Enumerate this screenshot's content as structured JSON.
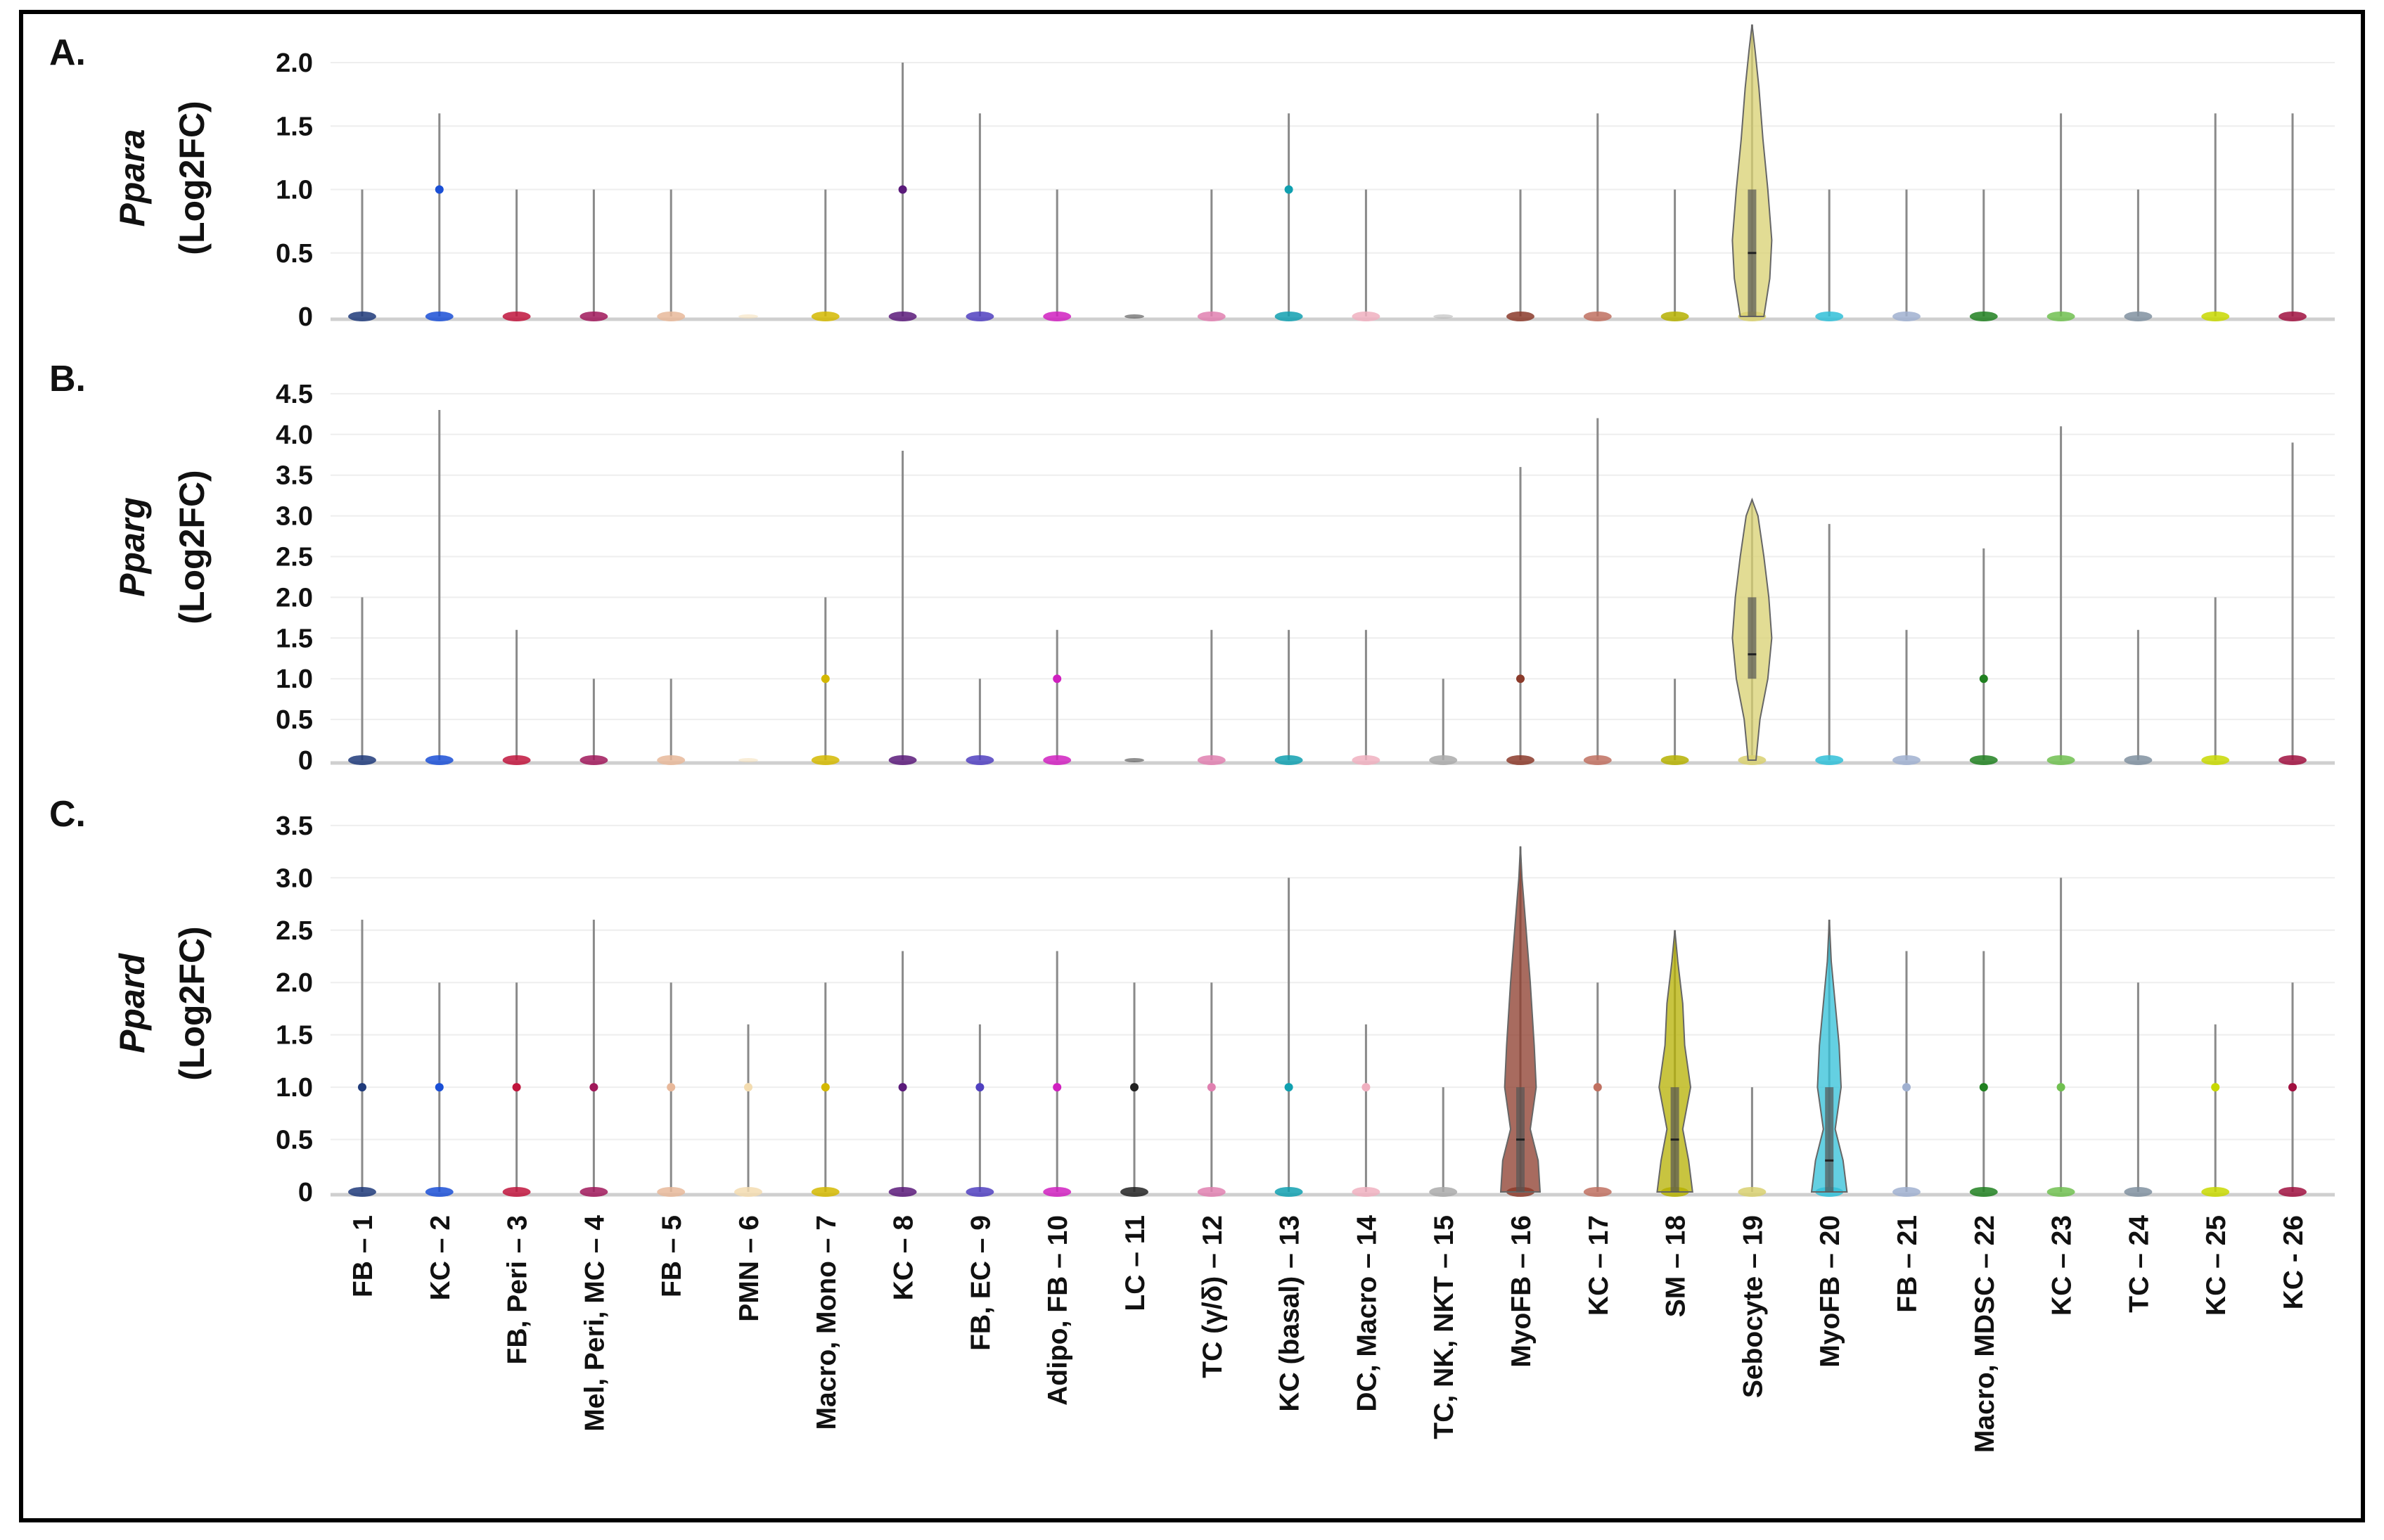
{
  "chart_data": {
    "type": "violin",
    "categories": [
      "FB – 1",
      "KC – 2",
      "FB, Peri – 3",
      "Mel, Peri, MC – 4",
      "FB – 5",
      "PMN – 6",
      "Macro, Mono – 7",
      "KC – 8",
      "FB, EC – 9",
      "Adipo, FB – 10",
      "LC – 11",
      "TC (γ/δ) – 12",
      "KC (basal) – 13",
      "DC, Macro – 14",
      "TC, NK, NKT – 15",
      "MyoFB – 16",
      "KC – 17",
      "SM – 18",
      "Sebocyte – 19",
      "MyoFB – 20",
      "FB – 21",
      "Macro, MDSC – 22",
      "KC – 23",
      "TC – 24",
      "KC – 25",
      "KC - 26"
    ],
    "colors": [
      "#1f3a7a",
      "#1a4fd6",
      "#c0143c",
      "#a0185a",
      "#e8b89a",
      "#f3dcb0",
      "#d4b800",
      "#5a1a7a",
      "#5040c0",
      "#d020c0",
      "#222222",
      "#e080b0",
      "#10a0b0",
      "#f0b0c0",
      "#aaaaaa",
      "#8b3a2a",
      "#c07060",
      "#b5b000",
      "#d8d070",
      "#30c0d8",
      "#a0b0d0",
      "#208020",
      "#70c050",
      "#8090a0",
      "#c8d800",
      "#a01040"
    ],
    "panels": [
      {
        "label": "A.",
        "gene": "Ppara",
        "ylabel": "(Log2FC)",
        "ylim": [
          0,
          2.3
        ],
        "yticks": [
          "0",
          "0.5",
          "1.0",
          "1.5",
          "2.0"
        ],
        "ytick_values": [
          0,
          0.5,
          1.0,
          1.5,
          2.0
        ],
        "max": [
          1.0,
          1.6,
          1.0,
          1.0,
          1.0,
          0,
          1.0,
          2.0,
          1.6,
          1.0,
          0,
          1.0,
          1.6,
          1.0,
          0,
          1.0,
          1.6,
          1.0,
          2.3,
          1.0,
          1.0,
          1.0,
          1.6,
          1.0,
          1.6,
          1.6
        ],
        "dots": [
          null,
          1.0,
          null,
          null,
          null,
          null,
          null,
          1.0,
          null,
          null,
          null,
          null,
          1.0,
          null,
          null,
          null,
          null,
          null,
          null,
          null,
          null,
          null,
          null,
          null,
          null,
          null
        ],
        "violins": {
          "18": {
            "profile": [
              [
                0,
                0.6
              ],
              [
                0.3,
                0.9
              ],
              [
                0.6,
                1
              ],
              [
                1.0,
                0.8
              ],
              [
                1.4,
                0.55
              ],
              [
                1.8,
                0.35
              ],
              [
                2.1,
                0.15
              ],
              [
                2.3,
                0
              ]
            ],
            "q1": 0,
            "median": 0.5,
            "q3": 1.0
          }
        }
      },
      {
        "label": "B.",
        "gene": "Pparg",
        "ylabel": "(Log2FC)",
        "ylim": [
          0,
          4.5
        ],
        "yticks": [
          "0",
          "0.5",
          "1.0",
          "1.5",
          "2.0",
          "2.5",
          "3.0",
          "3.5",
          "4.0",
          "4.5"
        ],
        "ytick_values": [
          0,
          0.5,
          1.0,
          1.5,
          2.0,
          2.5,
          3.0,
          3.5,
          4.0,
          4.5
        ],
        "max": [
          2.0,
          4.3,
          1.6,
          1.0,
          1.0,
          0,
          2.0,
          3.8,
          1.0,
          1.6,
          0,
          1.6,
          1.6,
          1.6,
          1.0,
          3.6,
          4.2,
          1.0,
          3.2,
          2.9,
          1.6,
          2.6,
          4.1,
          1.6,
          2.0,
          3.9
        ],
        "dots": [
          null,
          null,
          null,
          null,
          null,
          null,
          1.0,
          null,
          null,
          1.0,
          null,
          null,
          null,
          null,
          null,
          1.0,
          null,
          null,
          null,
          null,
          null,
          1.0,
          null,
          null,
          null,
          null
        ],
        "violins": {
          "18": {
            "profile": [
              [
                0,
                0.2
              ],
              [
                0.5,
                0.4
              ],
              [
                1.0,
                0.8
              ],
              [
                1.5,
                1
              ],
              [
                2.0,
                0.85
              ],
              [
                2.5,
                0.6
              ],
              [
                3.0,
                0.3
              ],
              [
                3.2,
                0
              ]
            ],
            "q1": 1.0,
            "median": 1.3,
            "q3": 2.0
          }
        }
      },
      {
        "label": "C.",
        "gene": "Ppard",
        "ylabel": "(Log2FC)",
        "ylim": [
          0,
          3.5
        ],
        "yticks": [
          "0",
          "0.5",
          "1.0",
          "1.5",
          "2.0",
          "2.5",
          "3.0",
          "3.5"
        ],
        "ytick_values": [
          0,
          0.5,
          1.0,
          1.5,
          2.0,
          2.5,
          3.0,
          3.5
        ],
        "max": [
          2.6,
          2.0,
          2.0,
          2.6,
          2.0,
          1.6,
          2.0,
          2.3,
          1.6,
          2.3,
          2.0,
          2.0,
          3.0,
          1.6,
          1.0,
          3.3,
          2.0,
          2.5,
          1.0,
          2.6,
          2.3,
          2.3,
          3.0,
          2.0,
          1.6,
          2.0
        ],
        "dots": [
          1.0,
          1.0,
          1.0,
          1.0,
          1.0,
          1.0,
          1.0,
          1.0,
          1.0,
          1.0,
          1.0,
          1.0,
          1.0,
          1.0,
          null,
          null,
          1.0,
          null,
          null,
          null,
          1.0,
          1.0,
          1.0,
          null,
          1.0,
          1.0
        ],
        "violins": {
          "15": {
            "profile": [
              [
                0,
                1
              ],
              [
                0.3,
                0.9
              ],
              [
                0.6,
                0.5
              ],
              [
                1.0,
                0.8
              ],
              [
                1.4,
                0.7
              ],
              [
                2.0,
                0.5
              ],
              [
                2.6,
                0.25
              ],
              [
                3.0,
                0.08
              ],
              [
                3.3,
                0
              ]
            ],
            "q1": 0,
            "median": 0.5,
            "q3": 1.0
          },
          "17": {
            "profile": [
              [
                0,
                0.9
              ],
              [
                0.3,
                0.7
              ],
              [
                0.6,
                0.4
              ],
              [
                1.0,
                0.8
              ],
              [
                1.4,
                0.5
              ],
              [
                1.8,
                0.4
              ],
              [
                2.2,
                0.15
              ],
              [
                2.5,
                0
              ]
            ],
            "q1": 0,
            "median": 0.5,
            "q3": 1.0
          },
          "19": {
            "profile": [
              [
                0,
                0.9
              ],
              [
                0.3,
                0.7
              ],
              [
                0.6,
                0.3
              ],
              [
                1.0,
                0.6
              ],
              [
                1.4,
                0.5
              ],
              [
                1.8,
                0.3
              ],
              [
                2.2,
                0.1
              ],
              [
                2.6,
                0
              ]
            ],
            "q1": 0,
            "median": 0.3,
            "q3": 1.0
          }
        }
      }
    ]
  }
}
